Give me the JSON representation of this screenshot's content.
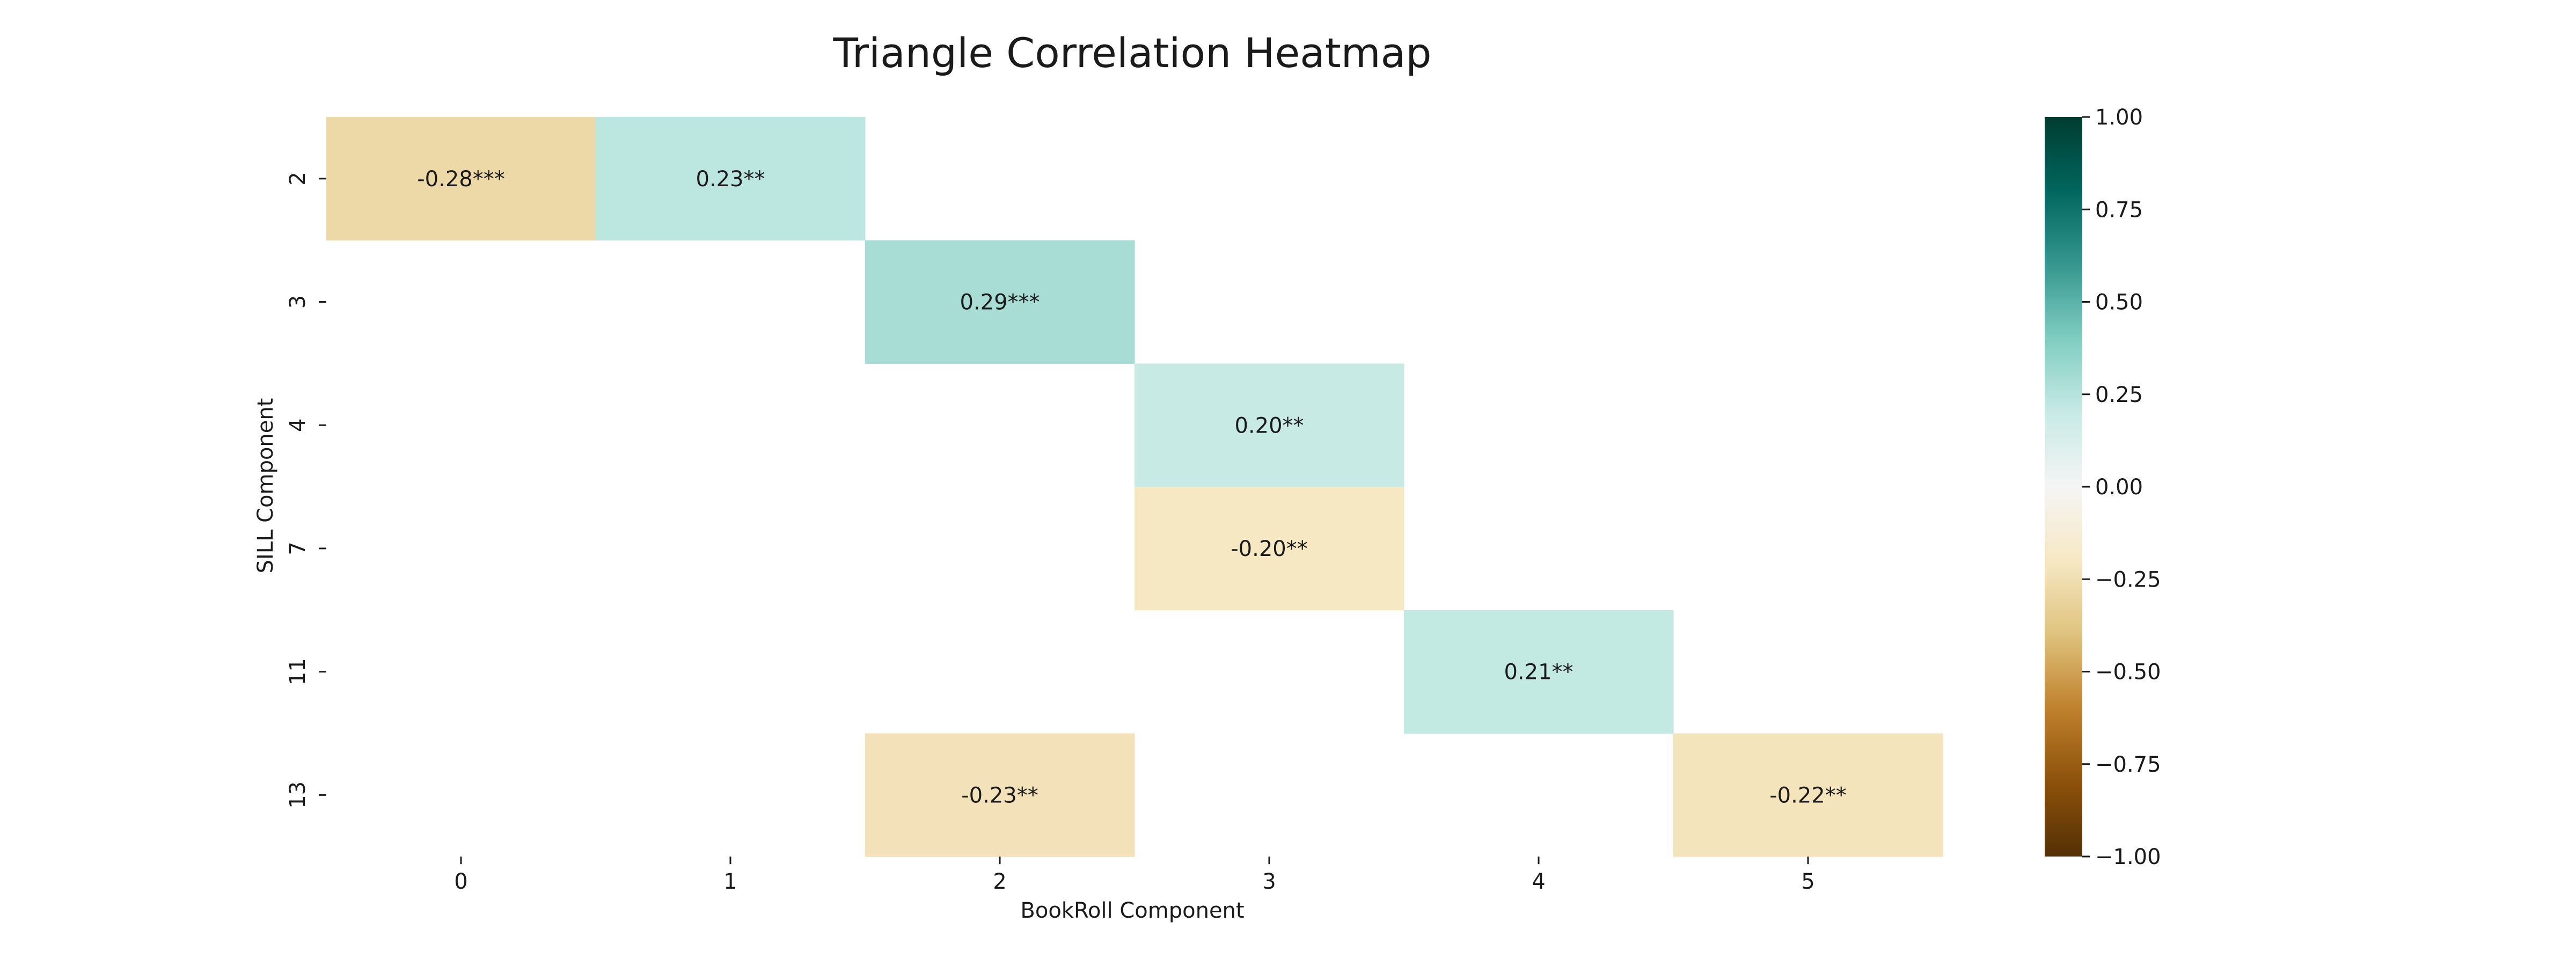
{
  "chart_data": {
    "type": "heatmap",
    "title": "Triangle Correlation Heatmap",
    "xlabel": "BookRoll Component",
    "ylabel": "SILL Component",
    "x_categories": [
      "0",
      "1",
      "2",
      "3",
      "4",
      "5"
    ],
    "y_categories": [
      "2",
      "3",
      "4",
      "7",
      "11",
      "13"
    ],
    "cells": [
      {
        "x": "0",
        "y": "2",
        "value": -0.28,
        "label": "-0.28***"
      },
      {
        "x": "1",
        "y": "2",
        "value": 0.23,
        "label": "0.23**"
      },
      {
        "x": "2",
        "y": "3",
        "value": 0.29,
        "label": "0.29***"
      },
      {
        "x": "3",
        "y": "4",
        "value": 0.2,
        "label": "0.20**"
      },
      {
        "x": "3",
        "y": "7",
        "value": -0.2,
        "label": "-0.20**"
      },
      {
        "x": "4",
        "y": "11",
        "value": 0.21,
        "label": "0.21**"
      },
      {
        "x": "2",
        "y": "13",
        "value": -0.23,
        "label": "-0.23**"
      },
      {
        "x": "5",
        "y": "13",
        "value": -0.22,
        "label": "-0.22**"
      }
    ],
    "colorbar": {
      "colormap": "BrBG",
      "range": [
        -1.0,
        1.0
      ],
      "ticks": [
        "1.00",
        "0.75",
        "0.50",
        "0.25",
        "0.00",
        "−0.25",
        "−0.50",
        "−0.75",
        "−1.00"
      ],
      "tick_values": [
        1.0,
        0.75,
        0.5,
        0.25,
        0.0,
        -0.25,
        -0.5,
        -0.75,
        -1.0
      ]
    }
  }
}
